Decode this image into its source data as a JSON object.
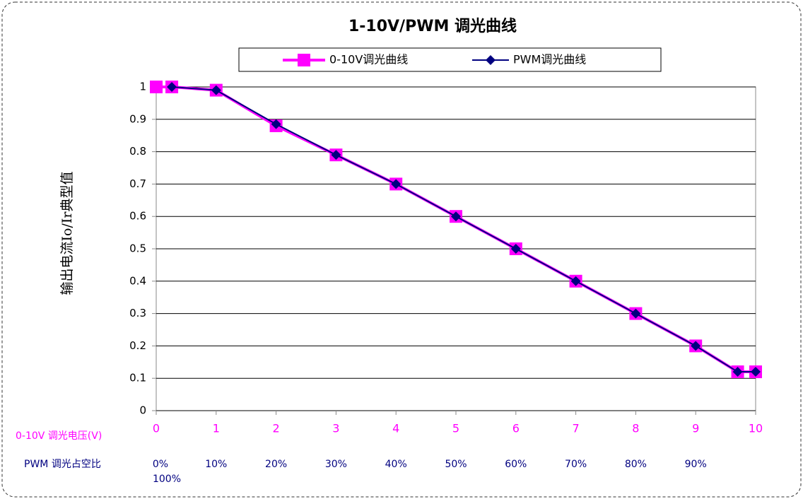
{
  "chart_data": {
    "type": "line",
    "title": "1-10V/PWM 调光曲线",
    "y_label": "输出电流Io/Ir典型值",
    "x_row_label": "0-10V 调光电压(V)",
    "pwm_row_label": "PWM 调光占空比",
    "pwm_labels": [
      "0%",
      "10%",
      "20%",
      "30%",
      "40%",
      "50%",
      "60%",
      "70%",
      "80%",
      "90%"
    ],
    "pwm_extra_label": "100%",
    "xlim": [
      0,
      10
    ],
    "xticks": [
      0,
      1,
      2,
      3,
      4,
      5,
      6,
      7,
      8,
      9,
      10
    ],
    "ylim": [
      0,
      1
    ],
    "yticks": [
      0,
      0.1,
      0.2,
      0.3,
      0.4,
      0.5,
      0.6,
      0.7,
      0.8,
      0.9,
      1
    ],
    "grid": true,
    "series": [
      {
        "name": "0-10V调光曲线",
        "color": "#ff00ff",
        "marker": "square",
        "x": [
          0,
          0.26,
          1,
          2,
          3,
          4,
          5,
          6,
          7,
          8,
          9,
          9.7,
          10
        ],
        "values": [
          1,
          1,
          0.99,
          0.88,
          0.79,
          0.7,
          0.6,
          0.5,
          0.4,
          0.3,
          0.2,
          0.12,
          0.12
        ]
      },
      {
        "name": "PWM调光曲线",
        "color": "#000080",
        "marker": "diamond",
        "x": [
          0.26,
          1,
          2,
          3,
          4,
          5,
          6,
          7,
          8,
          9,
          9.7,
          10
        ],
        "values": [
          1,
          0.99,
          0.885,
          0.79,
          0.7,
          0.6,
          0.5,
          0.4,
          0.3,
          0.2,
          0.12,
          0.12
        ]
      }
    ]
  }
}
